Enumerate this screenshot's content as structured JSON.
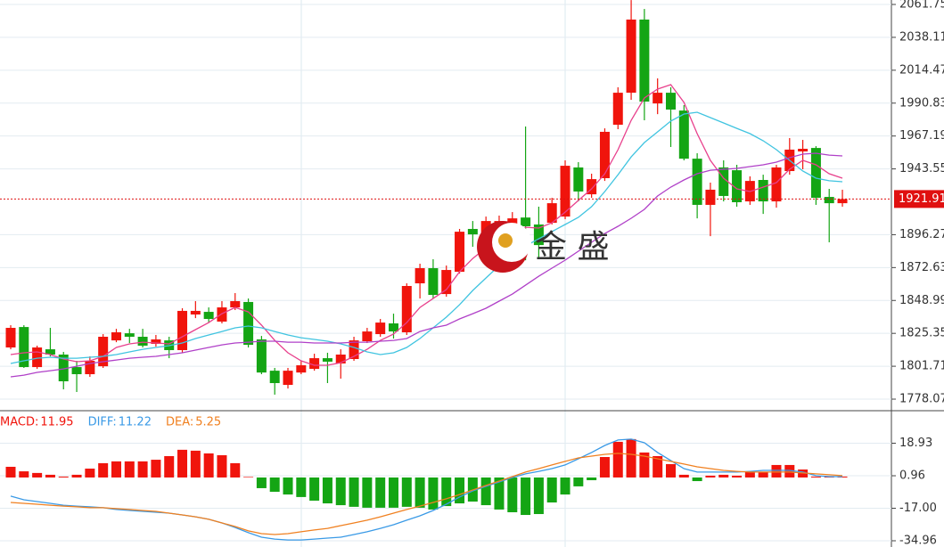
{
  "chart_data": [
    {
      "type": "candlestick",
      "up_color": "#f0140c",
      "down_color": "#14a514",
      "open": [
        1815.2,
        1829.9,
        1801.1,
        1813.9,
        1810.1,
        1801.1,
        1796.0,
        1801.7,
        1820.3,
        1825.4,
        1822.9,
        1817.8,
        1820.3,
        1813.3,
        1838.9,
        1840.8,
        1833.8,
        1844.0,
        1847.9,
        1821.0,
        1798.5,
        1788.3,
        1797.2,
        1799.8,
        1807.5,
        1803.7,
        1806.9,
        1819.7,
        1824.8,
        1832.5,
        1826.1,
        1861.3,
        1872.2,
        1853.6,
        1869.6,
        1900.4,
        1888.8,
        1901.6,
        1899.7,
        1908.6,
        1903.6,
        1904.8,
        1909.3,
        1944.6,
        1925.3,
        1936.9,
        1975.3,
        1998.3,
        2050.9,
        1990.6,
        1998.3,
        1985.5,
        1950.9,
        1917.7,
        1944.6,
        1942.6,
        1920.2,
        1935.6,
        1920.2,
        1942.0,
        1956.1,
        1958.6,
        1923.4,
        1918.9
      ],
      "high": [
        1831.2,
        1831.2,
        1816.5,
        1829.3,
        1812.0,
        1805.6,
        1808.8,
        1824.8,
        1828.6,
        1828.6,
        1828.6,
        1824.2,
        1822.9,
        1843.4,
        1848.5,
        1844.0,
        1848.5,
        1854.3,
        1850.4,
        1823.5,
        1800.5,
        1800.5,
        1805.6,
        1810.7,
        1811.4,
        1813.9,
        1822.9,
        1829.3,
        1835.7,
        1839.5,
        1861.3,
        1875.4,
        1878.6,
        1874.1,
        1900.4,
        1906.1,
        1909.3,
        1910.0,
        1912.5,
        1974.0,
        1916.4,
        1922.8,
        1949.7,
        1948.4,
        1940.1,
        1972.7,
        2002.2,
        2064.9,
        2058.5,
        2008.6,
        2002.2,
        1989.4,
        1954.8,
        1933.7,
        1949.7,
        1946.5,
        1938.2,
        1939.4,
        1946.5,
        1965.7,
        1964.4,
        1959.9,
        1929.2,
        1928.6
      ],
      "low": [
        1813.9,
        1800.5,
        1799.8,
        1808.8,
        1785.1,
        1783.2,
        1794.1,
        1800.5,
        1819.0,
        1818.4,
        1815.2,
        1815.8,
        1807.5,
        1811.4,
        1836.3,
        1833.1,
        1832.5,
        1842.1,
        1815.2,
        1796.0,
        1781.3,
        1785.7,
        1796.0,
        1798.5,
        1789.6,
        1792.8,
        1805.6,
        1818.4,
        1822.9,
        1821.6,
        1824.2,
        1850.4,
        1850.4,
        1851.7,
        1868.3,
        1887.6,
        1885.6,
        1898.4,
        1897.2,
        1877.9,
        1879.2,
        1903.6,
        1907.4,
        1920.2,
        1922.8,
        1934.9,
        1972.1,
        1993.2,
        1978.5,
        1982.9,
        1959.3,
        1949.7,
        1908.0,
        1895.2,
        1920.2,
        1916.4,
        1917.7,
        1911.2,
        1915.7,
        1939.4,
        1943.3,
        1917.7,
        1890.8,
        1916.4
      ],
      "close": [
        1829.3,
        1801.1,
        1815.2,
        1810.1,
        1790.9,
        1796.0,
        1805.6,
        1822.9,
        1826.1,
        1822.9,
        1816.5,
        1821.0,
        1813.3,
        1841.5,
        1841.5,
        1835.7,
        1844.0,
        1848.5,
        1817.1,
        1797.2,
        1789.6,
        1798.5,
        1802.4,
        1807.5,
        1805.0,
        1810.1,
        1820.3,
        1826.7,
        1833.1,
        1826.7,
        1859.4,
        1872.2,
        1853.0,
        1870.9,
        1898.4,
        1896.5,
        1906.1,
        1906.1,
        1908.0,
        1902.3,
        1888.8,
        1918.9,
        1945.8,
        1927.3,
        1936.2,
        1970.2,
        1998.3,
        2050.9,
        1991.9,
        1998.3,
        1986.2,
        1950.9,
        1917.7,
        1928.6,
        1924.1,
        1919.6,
        1934.9,
        1920.2,
        1944.6,
        1957.4,
        1958.0,
        1922.8,
        1918.9,
        1921.9
      ],
      "series": [
        {
          "color": "#e8408c",
          "values": [
            1810.1,
            1811.4,
            1812.0,
            1810.1,
            1806.9,
            1805.0,
            1805.6,
            1808.8,
            1815.2,
            1817.8,
            1819.0,
            1818.4,
            1817.8,
            1822.9,
            1828.0,
            1833.1,
            1839.5,
            1844.0,
            1840.8,
            1831.2,
            1820.3,
            1811.4,
            1805.6,
            1802.4,
            1802.4,
            1804.3,
            1808.8,
            1813.9,
            1820.3,
            1824.8,
            1833.1,
            1844.0,
            1850.4,
            1856.8,
            1869.6,
            1879.2,
            1886.9,
            1895.2,
            1899.7,
            1901.6,
            1901.0,
            1904.8,
            1912.5,
            1920.9,
            1929.2,
            1940.1,
            1957.4,
            1978.5,
            1994.5,
            2000.9,
            2004.1,
            1991.3,
            1968.9,
            1949.7,
            1936.9,
            1929.2,
            1927.3,
            1930.5,
            1933.7,
            1943.3,
            1949.7,
            1946.5,
            1940.1,
            1936.9
          ]
        },
        {
          "color": "#40c4e0",
          "values": [
            1803.7,
            1805.6,
            1807.5,
            1808.2,
            1807.5,
            1807.5,
            1808.2,
            1808.8,
            1810.1,
            1812.0,
            1813.9,
            1815.2,
            1816.5,
            1818.4,
            1821.6,
            1824.2,
            1826.7,
            1829.3,
            1830.6,
            1829.3,
            1826.7,
            1824.2,
            1822.2,
            1821.0,
            1819.7,
            1817.8,
            1815.2,
            1812.0,
            1810.1,
            1811.4,
            1815.2,
            1821.6,
            1829.3,
            1837.0,
            1845.9,
            1856.2,
            1865.2,
            1874.1,
            1881.2,
            1888.2,
            1893.3,
            1898.5,
            1903.6,
            1908.7,
            1916.4,
            1927.3,
            1939.4,
            1952.2,
            1962.5,
            1970.2,
            1977.9,
            1983.0,
            1984.3,
            1980.4,
            1976.6,
            1972.7,
            1968.9,
            1963.8,
            1957.4,
            1949.7,
            1942.0,
            1936.9,
            1935.0,
            1934.3
          ]
        },
        {
          "color": "#b040c8",
          "values": [
            1794.1,
            1795.3,
            1797.3,
            1798.5,
            1799.8,
            1801.7,
            1803.7,
            1805.0,
            1806.2,
            1807.5,
            1808.2,
            1808.8,
            1810.1,
            1811.4,
            1813.3,
            1815.2,
            1817.1,
            1818.4,
            1819.0,
            1819.7,
            1819.7,
            1819.0,
            1819.0,
            1818.4,
            1818.4,
            1818.4,
            1819.0,
            1819.0,
            1819.7,
            1820.3,
            1821.6,
            1826.7,
            1829.3,
            1831.2,
            1835.7,
            1839.5,
            1843.4,
            1848.5,
            1853.6,
            1860.0,
            1866.4,
            1872.2,
            1878.0,
            1884.4,
            1890.8,
            1897.2,
            1902.3,
            1908.1,
            1914.5,
            1924.1,
            1930.5,
            1935.6,
            1940.1,
            1942.6,
            1943.3,
            1943.9,
            1945.2,
            1946.5,
            1948.4,
            1951.6,
            1954.2,
            1954.8,
            1953.5,
            1952.9
          ]
        }
      ],
      "ylim": [
        1770.4,
        2064.95
      ],
      "yticks": [
        2061.75,
        2038.11,
        2014.47,
        1990.83,
        1967.19,
        1943.55,
        1896.27,
        1872.63,
        1848.99,
        1825.35,
        1801.71,
        1778.07
      ],
      "current_price": 1921.91,
      "watermark": "金 盛"
    },
    {
      "type": "macd",
      "up_color": "#f0140c",
      "down_color": "#14a514",
      "values": [
        5.9,
        3.4,
        2.5,
        1.5,
        0.5,
        1.5,
        4.9,
        7.9,
        8.9,
        8.9,
        8.9,
        9.8,
        11.8,
        15.3,
        14.8,
        13.3,
        12.3,
        7.9,
        0.3,
        -5.9,
        -7.9,
        -9.4,
        -10.8,
        -12.8,
        -14.3,
        -15.3,
        -16.2,
        -16.7,
        -16.7,
        -16.7,
        -16.2,
        -16.7,
        -17.7,
        -15.8,
        -14.3,
        -13.3,
        -15.3,
        -17.7,
        -19.2,
        -20.7,
        -20.2,
        -13.8,
        -9.4,
        -4.9,
        -1.5,
        11.3,
        19.7,
        21.2,
        13.8,
        11.8,
        7.4,
        1.5,
        -2.0,
        1.0,
        1.5,
        1.0,
        3.0,
        3.0,
        6.9,
        6.9,
        4.4,
        0.5,
        0.5,
        0.5
      ],
      "series": [
        {
          "color": "#3a9ae6",
          "values": [
            -10.3,
            -12.3,
            -13.3,
            -14.3,
            -15.3,
            -15.8,
            -16.2,
            -16.7,
            -17.7,
            -18.2,
            -18.7,
            -19.2,
            -19.7,
            -20.7,
            -21.7,
            -23.1,
            -25.1,
            -27.6,
            -30.5,
            -33.0,
            -34.0,
            -34.5,
            -34.5,
            -34.0,
            -33.5,
            -33.0,
            -31.5,
            -30.0,
            -28.1,
            -26.1,
            -23.6,
            -21.2,
            -18.2,
            -14.8,
            -10.8,
            -7.4,
            -4.9,
            -2.5,
            0.0,
            2.0,
            3.4,
            4.9,
            6.9,
            10.3,
            13.8,
            17.7,
            20.7,
            21.2,
            19.2,
            13.8,
            9.4,
            4.9,
            3.0,
            3.0,
            3.0,
            3.0,
            3.4,
            3.9,
            3.9,
            3.9,
            3.0,
            1.0,
            0.5,
            0.5
          ]
        },
        {
          "color": "#f08020",
          "values": [
            -13.8,
            -14.3,
            -14.8,
            -15.3,
            -15.8,
            -16.2,
            -16.7,
            -16.7,
            -17.2,
            -17.7,
            -18.2,
            -18.7,
            -19.7,
            -20.7,
            -21.7,
            -23.1,
            -25.1,
            -27.1,
            -29.5,
            -31.0,
            -31.5,
            -31.0,
            -30.0,
            -29.0,
            -28.1,
            -26.6,
            -25.1,
            -23.6,
            -21.7,
            -19.7,
            -17.7,
            -15.8,
            -13.8,
            -11.8,
            -9.4,
            -6.9,
            -4.4,
            -2.0,
            0.5,
            3.0,
            4.9,
            6.9,
            8.9,
            10.8,
            11.8,
            12.8,
            13.3,
            12.8,
            11.8,
            10.3,
            8.9,
            7.4,
            5.9,
            4.9,
            3.9,
            3.4,
            3.0,
            3.0,
            3.0,
            3.0,
            2.5,
            2.0,
            1.5,
            1.0
          ]
        }
      ],
      "legend": [
        {
          "label": "MACD:",
          "value": 11.95,
          "color": "#f0140c"
        },
        {
          "label": "DIFF:",
          "value": 11.22,
          "color": "#3a9ae6"
        },
        {
          "label": "DEA:",
          "value": 5.25,
          "color": "#f08020"
        }
      ],
      "ylim": [
        -38.4,
        36.4
      ],
      "yticks": [
        18.93,
        0.96,
        {
          "value": -17,
          "label": "-17.00"
        },
        -34.96
      ]
    }
  ]
}
